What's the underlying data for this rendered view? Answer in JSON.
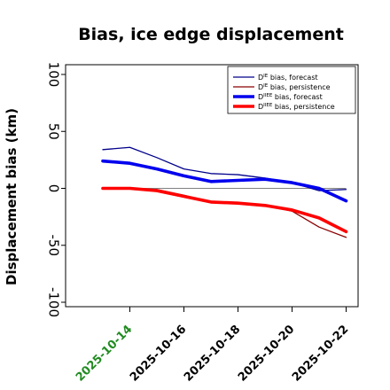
{
  "chart_data": {
    "type": "line",
    "title": "Bias, ice edge displacement",
    "xlabel": "",
    "ylabel": "Displacement bias (km)",
    "ylim": [
      -100,
      100
    ],
    "yticks": [
      -100,
      -50,
      0,
      50,
      100
    ],
    "x": [
      "2025-10-13",
      "2025-10-14",
      "2025-10-15",
      "2025-10-16",
      "2025-10-17",
      "2025-10-18",
      "2025-10-19",
      "2025-10-20",
      "2025-10-21",
      "2025-10-22"
    ],
    "xtick_labels": [
      "2025-10-14",
      "2025-10-16",
      "2025-10-18",
      "2025-10-20",
      "2025-10-22"
    ],
    "xtick_colors": [
      "#228B22",
      "#000000",
      "#000000",
      "#000000",
      "#000000"
    ],
    "zero_line": true,
    "grid": false,
    "legend_position": "top-right",
    "series": [
      {
        "name": "D^IE bias, forecast",
        "sup": "IE",
        "text": " bias, forecast",
        "color": "#00008B",
        "width": 1.3,
        "values": [
          34,
          36,
          27,
          17,
          13,
          12,
          9,
          5,
          -2,
          -1
        ]
      },
      {
        "name": "D^IE bias, persistence",
        "sup": "IE",
        "text": " bias, persistence",
        "color": "#8B0000",
        "width": 1.3,
        "values": [
          0,
          0,
          -1,
          -6,
          -12,
          -13,
          -15,
          -20,
          -34,
          -43
        ]
      },
      {
        "name": "D^IIEE bias, forecast",
        "sup": "IIEE",
        "text": " bias, forecast",
        "color": "#0000EE",
        "width": 3.6,
        "values": [
          24,
          22,
          17,
          11,
          6,
          7,
          8,
          5,
          0,
          -11
        ]
      },
      {
        "name": "D^IIEE bias, persistence",
        "sup": "IIEE",
        "text": " bias, persistence",
        "color": "#FF0000",
        "width": 3.6,
        "values": [
          0,
          0,
          -2,
          -7,
          -12,
          -13,
          -15,
          -19,
          -26,
          -38
        ]
      }
    ],
    "legend_prefix": "D"
  }
}
